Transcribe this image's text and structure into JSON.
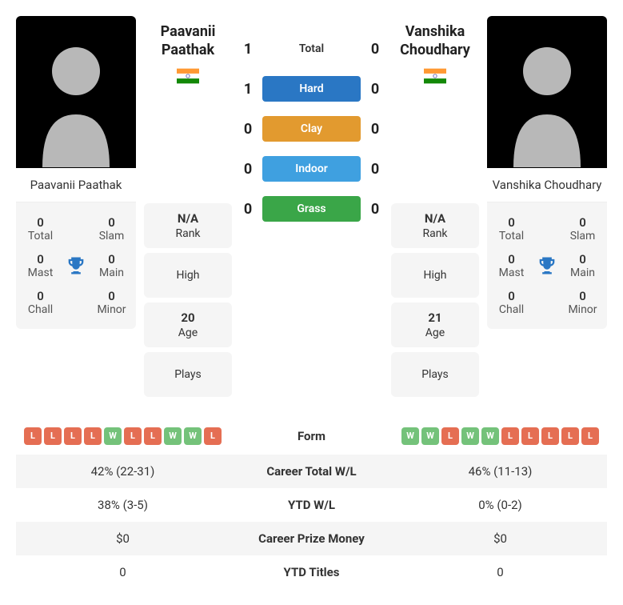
{
  "colors": {
    "hard": "#2a77c4",
    "clay": "#e29a2f",
    "indoor": "#3fa0e0",
    "grass": "#3aa648",
    "win": "#74c27a",
    "loss": "#e56e53",
    "trophy": "#2a77c4"
  },
  "player1": {
    "name": "Paavanii Paathak",
    "first": "Paavanii",
    "last": "Paathak",
    "titles": {
      "total": {
        "v": "0",
        "l": "Total"
      },
      "slam": {
        "v": "0",
        "l": "Slam"
      },
      "mast": {
        "v": "0",
        "l": "Mast"
      },
      "main": {
        "v": "0",
        "l": "Main"
      },
      "chall": {
        "v": "0",
        "l": "Chall"
      },
      "minor": {
        "v": "0",
        "l": "Minor"
      }
    },
    "stats": {
      "rank": "N/A",
      "high": "",
      "age": "20",
      "plays": ""
    }
  },
  "player2": {
    "name": "Vanshika Choudhary",
    "first": "Vanshika",
    "last": "Choudhary",
    "titles": {
      "total": {
        "v": "0",
        "l": "Total"
      },
      "slam": {
        "v": "0",
        "l": "Slam"
      },
      "mast": {
        "v": "0",
        "l": "Mast"
      },
      "main": {
        "v": "0",
        "l": "Main"
      },
      "chall": {
        "v": "0",
        "l": "Chall"
      },
      "minor": {
        "v": "0",
        "l": "Minor"
      }
    },
    "stats": {
      "rank": "N/A",
      "high": "",
      "age": "21",
      "plays": ""
    }
  },
  "labels": {
    "rank": "Rank",
    "high": "High",
    "age": "Age",
    "plays": "Plays"
  },
  "h2h": {
    "total": {
      "p1": "1",
      "label": "Total",
      "p2": "0"
    },
    "hard": {
      "p1": "1",
      "label": "Hard",
      "p2": "0"
    },
    "clay": {
      "p1": "0",
      "label": "Clay",
      "p2": "0"
    },
    "indoor": {
      "p1": "0",
      "label": "Indoor",
      "p2": "0"
    },
    "grass": {
      "p1": "0",
      "label": "Grass",
      "p2": "0"
    }
  },
  "compare": {
    "form": {
      "label": "Form"
    },
    "career_wl": {
      "p1": "42% (22-31)",
      "label": "Career Total W/L",
      "p2": "46% (11-13)"
    },
    "ytd_wl": {
      "p1": "38% (3-5)",
      "label": "YTD W/L",
      "p2": "0% (0-2)"
    },
    "prize": {
      "p1": "$0",
      "label": "Career Prize Money",
      "p2": "$0"
    },
    "ytd_titles": {
      "p1": "0",
      "label": "YTD Titles",
      "p2": "0"
    }
  },
  "form": {
    "p1": [
      "L",
      "L",
      "L",
      "L",
      "W",
      "L",
      "L",
      "W",
      "W",
      "L"
    ],
    "p2": [
      "W",
      "W",
      "L",
      "W",
      "W",
      "L",
      "L",
      "L",
      "L",
      "L"
    ]
  }
}
